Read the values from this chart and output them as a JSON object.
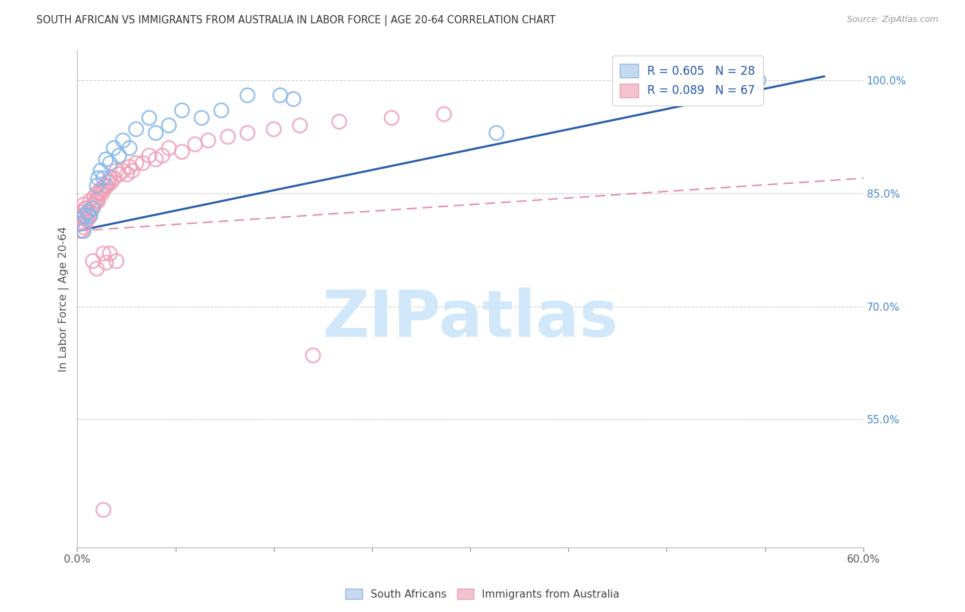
{
  "title": "SOUTH AFRICAN VS IMMIGRANTS FROM AUSTRALIA IN LABOR FORCE | AGE 20-64 CORRELATION CHART",
  "source": "Source: ZipAtlas.com",
  "ylabel": "In Labor Force | Age 20-64",
  "xlim": [
    0.0,
    0.6
  ],
  "ylim": [
    0.38,
    1.04
  ],
  "yticks": [
    0.55,
    0.7,
    0.85,
    1.0
  ],
  "ytick_labels": [
    "55.0%",
    "70.0%",
    "85.0%",
    "100.0%"
  ],
  "xticks": [
    0.0,
    0.075,
    0.15,
    0.225,
    0.3,
    0.375,
    0.45,
    0.525,
    0.6
  ],
  "xtick_labels": [
    "0.0%",
    "",
    "",
    "",
    "",
    "",
    "",
    "",
    "60.0%"
  ],
  "legend_text1": "R = 0.605   N = 28",
  "legend_text2": "R = 0.089   N = 67",
  "watermark": "ZIPatlas",
  "watermark_color": "#d0e8fa",
  "blue_scatter_color": "#85b8ea",
  "pink_scatter_color": "#f0a0b8",
  "blue_line_color": "#2a5faa",
  "pink_line_color": "#e07090",
  "background_color": "#ffffff",
  "title_color": "#333333",
  "right_axis_color": "#4488cc",
  "grid_color": "#cccccc",
  "legend_blue_face": "#c5d9f1",
  "legend_blue_edge": "#9ab8db",
  "legend_pink_face": "#f4c2ce",
  "legend_pink_edge": "#e8a0b0",
  "blue_scatter_x": [
    0.003,
    0.005,
    0.006,
    0.008,
    0.01,
    0.012,
    0.015,
    0.016,
    0.018,
    0.02,
    0.022,
    0.025,
    0.028,
    0.032,
    0.035,
    0.04,
    0.045,
    0.055,
    0.06,
    0.07,
    0.08,
    0.095,
    0.11,
    0.13,
    0.155,
    0.165,
    0.32,
    0.52
  ],
  "blue_scatter_y": [
    0.81,
    0.8,
    0.82,
    0.825,
    0.82,
    0.83,
    0.86,
    0.87,
    0.88,
    0.87,
    0.895,
    0.89,
    0.91,
    0.9,
    0.92,
    0.91,
    0.935,
    0.95,
    0.93,
    0.94,
    0.96,
    0.95,
    0.96,
    0.98,
    0.98,
    0.975,
    0.93,
    1.0
  ],
  "pink_scatter_x": [
    0.001,
    0.002,
    0.003,
    0.003,
    0.004,
    0.004,
    0.005,
    0.005,
    0.005,
    0.006,
    0.006,
    0.007,
    0.007,
    0.008,
    0.008,
    0.009,
    0.01,
    0.01,
    0.011,
    0.012,
    0.013,
    0.013,
    0.014,
    0.015,
    0.015,
    0.016,
    0.017,
    0.018,
    0.019,
    0.02,
    0.021,
    0.022,
    0.023,
    0.024,
    0.025,
    0.026,
    0.028,
    0.03,
    0.032,
    0.035,
    0.038,
    0.04,
    0.042,
    0.045,
    0.05,
    0.055,
    0.06,
    0.065,
    0.07,
    0.08,
    0.09,
    0.1,
    0.115,
    0.13,
    0.15,
    0.17,
    0.2,
    0.24,
    0.28,
    0.03,
    0.012,
    0.02,
    0.025,
    0.015,
    0.022,
    0.18,
    0.02
  ],
  "pink_scatter_y": [
    0.81,
    0.8,
    0.81,
    0.825,
    0.8,
    0.82,
    0.805,
    0.82,
    0.835,
    0.81,
    0.83,
    0.815,
    0.83,
    0.815,
    0.825,
    0.82,
    0.825,
    0.84,
    0.83,
    0.835,
    0.835,
    0.845,
    0.84,
    0.84,
    0.85,
    0.84,
    0.85,
    0.855,
    0.85,
    0.855,
    0.86,
    0.86,
    0.86,
    0.865,
    0.87,
    0.865,
    0.87,
    0.88,
    0.875,
    0.88,
    0.875,
    0.885,
    0.88,
    0.89,
    0.89,
    0.9,
    0.895,
    0.9,
    0.91,
    0.905,
    0.915,
    0.92,
    0.925,
    0.93,
    0.935,
    0.94,
    0.945,
    0.95,
    0.955,
    0.76,
    0.76,
    0.77,
    0.77,
    0.75,
    0.758,
    0.635,
    0.43
  ],
  "blue_trend_x": [
    0.0,
    0.57
  ],
  "blue_trend_y": [
    0.8,
    1.005
  ],
  "pink_trend_x": [
    0.0,
    0.6
  ],
  "pink_trend_y": [
    0.8,
    0.87
  ]
}
